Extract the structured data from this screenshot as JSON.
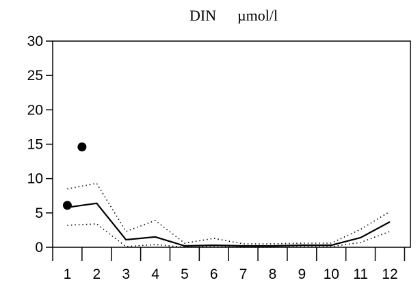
{
  "chart_data": {
    "type": "line",
    "title": "DIN",
    "unit": "µmol/l",
    "xlabel": "",
    "ylabel": "",
    "x_ticks": [
      "1",
      "2",
      "3",
      "4",
      "5",
      "6",
      "7",
      "8",
      "9",
      "10",
      "11",
      "12"
    ],
    "y_ticks": [
      "0",
      "5",
      "10",
      "15",
      "20",
      "25",
      "30"
    ],
    "xlim": [
      0.5,
      12.7
    ],
    "ylim": [
      0,
      30
    ],
    "grid": false,
    "series": [
      {
        "style": "solid",
        "x": [
          1,
          2,
          3,
          4,
          5,
          6,
          7,
          8,
          9,
          10,
          11,
          12
        ],
        "y": [
          5.8,
          6.4,
          1.1,
          1.5,
          0.2,
          0.3,
          0.2,
          0.2,
          0.3,
          0.3,
          1.4,
          3.7
        ]
      },
      {
        "style": "dotted",
        "x": [
          1,
          2,
          3,
          4,
          5,
          6,
          7,
          8,
          9,
          10,
          11,
          12
        ],
        "y": [
          8.5,
          9.3,
          2.3,
          3.9,
          0.6,
          1.3,
          0.5,
          0.5,
          0.6,
          0.6,
          2.6,
          5.2
        ]
      },
      {
        "style": "dotted",
        "x": [
          1,
          2,
          3,
          4,
          5,
          6,
          7,
          8,
          9,
          10,
          11,
          12
        ],
        "y": [
          3.2,
          3.4,
          0.1,
          0.4,
          0.0,
          0.1,
          0.0,
          0.0,
          0.1,
          0.1,
          0.7,
          2.3
        ]
      }
    ],
    "points": [
      {
        "x": 1.0,
        "y": 6.1
      },
      {
        "x": 1.5,
        "y": 14.6
      }
    ]
  }
}
